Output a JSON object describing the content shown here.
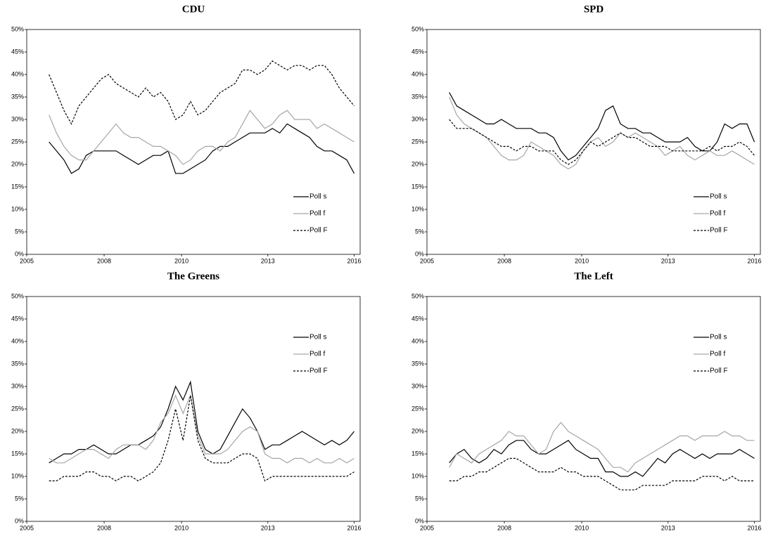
{
  "chart_data": [
    {
      "type": "line",
      "title": "CDU",
      "legend": "lower right",
      "x": [
        2005.75,
        2006,
        2006.25,
        2006.5,
        2006.75,
        2007,
        2007.25,
        2007.5,
        2007.75,
        2008,
        2008.25,
        2008.5,
        2008.75,
        2009,
        2009.25,
        2009.5,
        2009.75,
        2010,
        2010.25,
        2010.5,
        2010.75,
        2011,
        2011.25,
        2011.5,
        2011.75,
        2012,
        2012.25,
        2012.5,
        2012.75,
        2013,
        2013.25,
        2013.5,
        2013.75,
        2014,
        2014.25,
        2014.5,
        2014.75,
        2015,
        2015.25,
        2015.5,
        2015.75,
        2016
      ],
      "xlim": [
        2005,
        2016.2
      ],
      "xticks": [
        {
          "value": 2005,
          "label": "2005"
        },
        {
          "value": 2007.6,
          "label": "2008"
        },
        {
          "value": 2010.2,
          "label": "2010"
        },
        {
          "value": 2013.1,
          "label": "2013"
        },
        {
          "value": 2016,
          "label": "2016"
        }
      ],
      "ylim": [
        0,
        50
      ],
      "yticks": [
        {
          "value": 0,
          "label": "0%"
        },
        {
          "value": 5,
          "label": "5%"
        },
        {
          "value": 10,
          "label": "10%"
        },
        {
          "value": 15,
          "label": "15%"
        },
        {
          "value": 20,
          "label": "20%"
        },
        {
          "value": 25,
          "label": "25%"
        },
        {
          "value": 30,
          "label": "30%"
        },
        {
          "value": 35,
          "label": "35%"
        },
        {
          "value": 40,
          "label": "40%"
        },
        {
          "value": 45,
          "label": "45%"
        },
        {
          "value": 50,
          "label": "50%"
        }
      ],
      "series": [
        {
          "name": "Poll s",
          "color": "#000000",
          "line_style": "solid",
          "values": [
            25,
            23,
            21,
            18,
            19,
            22,
            23,
            23,
            23,
            23,
            22,
            21,
            20,
            21,
            22,
            22,
            23,
            18,
            18,
            19,
            20,
            21,
            23,
            24,
            24,
            25,
            26,
            27,
            27,
            27,
            28,
            27,
            29,
            28,
            27,
            26,
            24,
            23,
            23,
            22,
            21,
            18
          ]
        },
        {
          "name": "Poll f",
          "color": "#a6a6a6",
          "line_style": "solid",
          "values": [
            31,
            27,
            24,
            22,
            21,
            21,
            23,
            25,
            27,
            29,
            27,
            26,
            26,
            25,
            24,
            24,
            23,
            22,
            20,
            21,
            23,
            24,
            24,
            23,
            25,
            26,
            29,
            32,
            30,
            28,
            29,
            31,
            32,
            30,
            30,
            30,
            28,
            29,
            28,
            27,
            26,
            25
          ]
        },
        {
          "name": "Poll F",
          "color": "#000000",
          "line_style": "dashed",
          "values": [
            40,
            36,
            32,
            29,
            33,
            35,
            37,
            39,
            40,
            38,
            37,
            36,
            35,
            37,
            35,
            36,
            34,
            30,
            31,
            34,
            31,
            32,
            34,
            36,
            37,
            38,
            41,
            41,
            40,
            41,
            43,
            42,
            41,
            42,
            42,
            41,
            42,
            42,
            40,
            37,
            35,
            33
          ]
        }
      ]
    },
    {
      "type": "line",
      "title": "SPD",
      "legend": "lower right",
      "x": [
        2005.75,
        2006,
        2006.25,
        2006.5,
        2006.75,
        2007,
        2007.25,
        2007.5,
        2007.75,
        2008,
        2008.25,
        2008.5,
        2008.75,
        2009,
        2009.25,
        2009.5,
        2009.75,
        2010,
        2010.25,
        2010.5,
        2010.75,
        2011,
        2011.25,
        2011.5,
        2011.75,
        2012,
        2012.25,
        2012.5,
        2012.75,
        2013,
        2013.25,
        2013.5,
        2013.75,
        2014,
        2014.25,
        2014.5,
        2014.75,
        2015,
        2015.25,
        2015.5,
        2015.75,
        2016
      ],
      "xlim": [
        2005,
        2016.2
      ],
      "xticks": [
        {
          "value": 2005,
          "label": "2005"
        },
        {
          "value": 2007.6,
          "label": "2008"
        },
        {
          "value": 2010.2,
          "label": "2010"
        },
        {
          "value": 2013.1,
          "label": "2013"
        },
        {
          "value": 2016,
          "label": "2016"
        }
      ],
      "ylim": [
        0,
        50
      ],
      "yticks": [
        {
          "value": 0,
          "label": "0%"
        },
        {
          "value": 5,
          "label": "5%"
        },
        {
          "value": 10,
          "label": "10%"
        },
        {
          "value": 15,
          "label": "15%"
        },
        {
          "value": 20,
          "label": "20%"
        },
        {
          "value": 25,
          "label": "25%"
        },
        {
          "value": 30,
          "label": "30%"
        },
        {
          "value": 35,
          "label": "35%"
        },
        {
          "value": 40,
          "label": "40%"
        },
        {
          "value": 45,
          "label": "45%"
        },
        {
          "value": 50,
          "label": "50%"
        }
      ],
      "series": [
        {
          "name": "Poll s",
          "color": "#000000",
          "line_style": "solid",
          "values": [
            36,
            33,
            32,
            31,
            30,
            29,
            29,
            30,
            29,
            28,
            28,
            28,
            27,
            27,
            26,
            23,
            21,
            22,
            24,
            26,
            28,
            32,
            33,
            29,
            28,
            28,
            27,
            27,
            26,
            25,
            25,
            25,
            26,
            24,
            23,
            23,
            25,
            29,
            28,
            29,
            29,
            25
          ]
        },
        {
          "name": "Poll f",
          "color": "#a6a6a6",
          "line_style": "solid",
          "values": [
            35,
            31,
            29,
            28,
            27,
            26,
            24,
            22,
            21,
            21,
            22,
            25,
            24,
            23,
            22,
            20,
            19,
            20,
            23,
            25,
            26,
            24,
            25,
            27,
            26,
            27,
            26,
            25,
            24,
            22,
            23,
            24,
            22,
            21,
            22,
            23,
            22,
            22,
            23,
            22,
            21,
            20
          ]
        },
        {
          "name": "Poll F",
          "color": "#000000",
          "line_style": "dashed",
          "values": [
            30,
            28,
            28,
            28,
            27,
            26,
            25,
            24,
            24,
            23,
            24,
            24,
            23,
            23,
            23,
            21,
            20,
            21,
            23,
            25,
            24,
            25,
            26,
            27,
            26,
            26,
            25,
            24,
            24,
            24,
            23,
            23,
            23,
            23,
            23,
            24,
            23,
            24,
            24,
            25,
            24,
            22
          ]
        }
      ]
    },
    {
      "type": "line",
      "title": "The Greens",
      "legend": "upper right",
      "x": [
        2005.75,
        2006,
        2006.25,
        2006.5,
        2006.75,
        2007,
        2007.25,
        2007.5,
        2007.75,
        2008,
        2008.25,
        2008.5,
        2008.75,
        2009,
        2009.25,
        2009.5,
        2009.75,
        2010,
        2010.25,
        2010.5,
        2010.75,
        2011,
        2011.25,
        2011.5,
        2011.75,
        2012,
        2012.25,
        2012.5,
        2012.75,
        2013,
        2013.25,
        2013.5,
        2013.75,
        2014,
        2014.25,
        2014.5,
        2014.75,
        2015,
        2015.25,
        2015.5,
        2015.75,
        2016
      ],
      "xlim": [
        2005,
        2016.2
      ],
      "xticks": [
        {
          "value": 2005,
          "label": "2005"
        },
        {
          "value": 2007.6,
          "label": "2008"
        },
        {
          "value": 2010.2,
          "label": "2010"
        },
        {
          "value": 2013.1,
          "label": "2013"
        },
        {
          "value": 2016,
          "label": "2016"
        }
      ],
      "ylim": [
        0,
        50
      ],
      "yticks": [
        {
          "value": 0,
          "label": "0%"
        },
        {
          "value": 5,
          "label": "5%"
        },
        {
          "value": 10,
          "label": "10%"
        },
        {
          "value": 15,
          "label": "15%"
        },
        {
          "value": 20,
          "label": "20%"
        },
        {
          "value": 25,
          "label": "25%"
        },
        {
          "value": 30,
          "label": "30%"
        },
        {
          "value": 35,
          "label": "35%"
        },
        {
          "value": 40,
          "label": "40%"
        },
        {
          "value": 45,
          "label": "45%"
        },
        {
          "value": 50,
          "label": "50%"
        }
      ],
      "series": [
        {
          "name": "Poll s",
          "color": "#000000",
          "line_style": "solid",
          "values": [
            13,
            14,
            15,
            15,
            16,
            16,
            17,
            16,
            15,
            15,
            16,
            17,
            17,
            18,
            19,
            21,
            25,
            30,
            27,
            31,
            20,
            16,
            15,
            16,
            19,
            22,
            25,
            23,
            20,
            16,
            17,
            17,
            18,
            19,
            20,
            19,
            18,
            17,
            18,
            17,
            18,
            20
          ]
        },
        {
          "name": "Poll f",
          "color": "#a6a6a6",
          "line_style": "solid",
          "values": [
            14,
            13,
            13,
            14,
            15,
            16,
            16,
            15,
            14,
            16,
            17,
            17,
            17,
            16,
            18,
            22,
            24,
            28,
            24,
            28,
            19,
            15,
            15,
            15,
            16,
            18,
            20,
            21,
            20,
            15,
            14,
            14,
            13,
            14,
            14,
            13,
            14,
            13,
            13,
            14,
            13,
            14
          ]
        },
        {
          "name": "Poll F",
          "color": "#000000",
          "line_style": "dashed",
          "values": [
            9,
            9,
            10,
            10,
            10,
            11,
            11,
            10,
            10,
            9,
            10,
            10,
            9,
            10,
            11,
            13,
            18,
            25,
            18,
            28,
            18,
            14,
            13,
            13,
            13,
            14,
            15,
            15,
            14,
            9,
            10,
            10,
            10,
            10,
            10,
            10,
            10,
            10,
            10,
            10,
            10,
            11
          ]
        }
      ]
    },
    {
      "type": "line",
      "title": "The Left",
      "legend": "upper right",
      "x": [
        2005.75,
        2006,
        2006.25,
        2006.5,
        2006.75,
        2007,
        2007.25,
        2007.5,
        2007.75,
        2008,
        2008.25,
        2008.5,
        2008.75,
        2009,
        2009.25,
        2009.5,
        2009.75,
        2010,
        2010.25,
        2010.5,
        2010.75,
        2011,
        2011.25,
        2011.5,
        2011.75,
        2012,
        2012.25,
        2012.5,
        2012.75,
        2013,
        2013.25,
        2013.5,
        2013.75,
        2014,
        2014.25,
        2014.5,
        2014.75,
        2015,
        2015.25,
        2015.5,
        2015.75,
        2016
      ],
      "xlim": [
        2005,
        2016.2
      ],
      "xticks": [
        {
          "value": 2005,
          "label": "2005"
        },
        {
          "value": 2007.6,
          "label": "2008"
        },
        {
          "value": 2010.2,
          "label": "2010"
        },
        {
          "value": 2013.1,
          "label": "2013"
        },
        {
          "value": 2016,
          "label": "2016"
        }
      ],
      "ylim": [
        0,
        50
      ],
      "yticks": [
        {
          "value": 0,
          "label": "0%"
        },
        {
          "value": 5,
          "label": "5%"
        },
        {
          "value": 10,
          "label": "10%"
        },
        {
          "value": 15,
          "label": "15%"
        },
        {
          "value": 20,
          "label": "20%"
        },
        {
          "value": 25,
          "label": "25%"
        },
        {
          "value": 30,
          "label": "30%"
        },
        {
          "value": 35,
          "label": "35%"
        },
        {
          "value": 40,
          "label": "40%"
        },
        {
          "value": 45,
          "label": "45%"
        },
        {
          "value": 50,
          "label": "50%"
        }
      ],
      "series": [
        {
          "name": "Poll s",
          "color": "#000000",
          "line_style": "solid",
          "values": [
            13,
            15,
            16,
            14,
            13,
            14,
            16,
            15,
            17,
            18,
            18,
            16,
            15,
            15,
            16,
            17,
            18,
            16,
            15,
            14,
            14,
            11,
            11,
            10,
            10,
            11,
            10,
            12,
            14,
            13,
            15,
            16,
            15,
            14,
            15,
            14,
            15,
            15,
            15,
            16,
            15,
            14
          ]
        },
        {
          "name": "Poll f",
          "color": "#a6a6a6",
          "line_style": "solid",
          "values": [
            12,
            15,
            14,
            13,
            15,
            16,
            17,
            18,
            20,
            19,
            19,
            17,
            15,
            16,
            20,
            22,
            20,
            19,
            18,
            17,
            16,
            14,
            12,
            12,
            11,
            13,
            14,
            15,
            16,
            17,
            18,
            19,
            19,
            18,
            19,
            19,
            19,
            20,
            19,
            19,
            18,
            18
          ]
        },
        {
          "name": "Poll F",
          "color": "#000000",
          "line_style": "dashed",
          "values": [
            9,
            9,
            10,
            10,
            11,
            11,
            12,
            13,
            14,
            14,
            13,
            12,
            11,
            11,
            11,
            12,
            11,
            11,
            10,
            10,
            10,
            9,
            8,
            7,
            7,
            7,
            8,
            8,
            8,
            8,
            9,
            9,
            9,
            9,
            10,
            10,
            10,
            9,
            10,
            9,
            9,
            9
          ]
        }
      ]
    }
  ]
}
